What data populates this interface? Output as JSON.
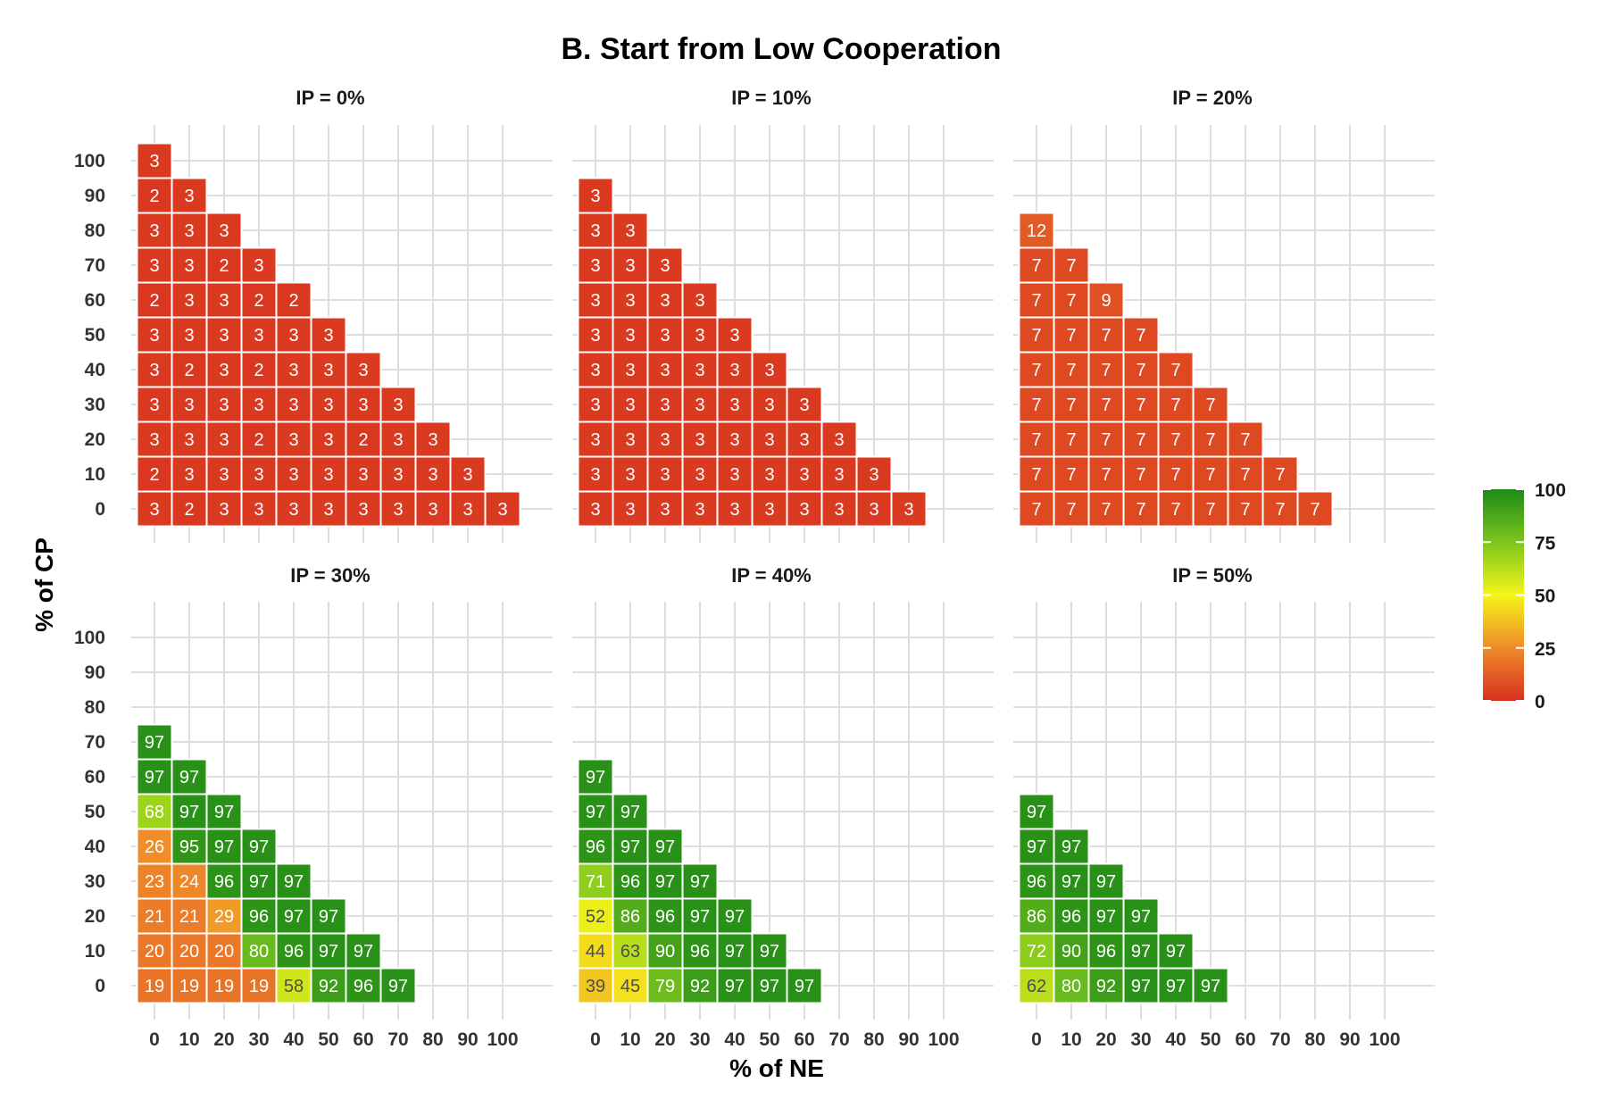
{
  "chart_data": {
    "type": "heatmap",
    "title": "B. Start from Low Cooperation",
    "xlabel": "% of NE",
    "ylabel": "% of CP",
    "x_ticks": [
      0,
      10,
      20,
      30,
      40,
      50,
      60,
      70,
      80,
      90,
      100
    ],
    "y_ticks": [
      0,
      10,
      20,
      30,
      40,
      50,
      60,
      70,
      80,
      90,
      100
    ],
    "grid": true,
    "legend": {
      "position": "right",
      "ticks": [
        0,
        25,
        50,
        75,
        100
      ],
      "colors": [
        "#d7301f",
        "#ef8a2a",
        "#f5f518",
        "#7cc61e",
        "#1e8a16"
      ]
    },
    "panels": [
      {
        "title": "IP = 0%",
        "rows": [
          {
            "cp": 0,
            "values": [
              3,
              2,
              3,
              3,
              3,
              3,
              3,
              3,
              3,
              3,
              3
            ]
          },
          {
            "cp": 10,
            "values": [
              2,
              3,
              3,
              3,
              3,
              3,
              3,
              3,
              3,
              3
            ]
          },
          {
            "cp": 20,
            "values": [
              3,
              3,
              3,
              2,
              3,
              3,
              2,
              3,
              3
            ]
          },
          {
            "cp": 30,
            "values": [
              3,
              3,
              3,
              3,
              3,
              3,
              3,
              3
            ]
          },
          {
            "cp": 40,
            "values": [
              3,
              2,
              3,
              2,
              3,
              3,
              3
            ]
          },
          {
            "cp": 50,
            "values": [
              3,
              3,
              3,
              3,
              3,
              3
            ]
          },
          {
            "cp": 60,
            "values": [
              2,
              3,
              3,
              2,
              2
            ]
          },
          {
            "cp": 70,
            "values": [
              3,
              3,
              2,
              3
            ]
          },
          {
            "cp": 80,
            "values": [
              3,
              3,
              3
            ]
          },
          {
            "cp": 90,
            "values": [
              2,
              3
            ]
          },
          {
            "cp": 100,
            "values": [
              3
            ]
          }
        ]
      },
      {
        "title": "IP = 10%",
        "rows": [
          {
            "cp": 0,
            "values": [
              3,
              3,
              3,
              3,
              3,
              3,
              3,
              3,
              3,
              3
            ]
          },
          {
            "cp": 10,
            "values": [
              3,
              3,
              3,
              3,
              3,
              3,
              3,
              3,
              3
            ]
          },
          {
            "cp": 20,
            "values": [
              3,
              3,
              3,
              3,
              3,
              3,
              3,
              3
            ]
          },
          {
            "cp": 30,
            "values": [
              3,
              3,
              3,
              3,
              3,
              3,
              3
            ]
          },
          {
            "cp": 40,
            "values": [
              3,
              3,
              3,
              3,
              3,
              3
            ]
          },
          {
            "cp": 50,
            "values": [
              3,
              3,
              3,
              3,
              3
            ]
          },
          {
            "cp": 60,
            "values": [
              3,
              3,
              3,
              3
            ]
          },
          {
            "cp": 70,
            "values": [
              3,
              3,
              3
            ]
          },
          {
            "cp": 80,
            "values": [
              3,
              3
            ]
          },
          {
            "cp": 90,
            "values": [
              3
            ]
          }
        ]
      },
      {
        "title": "IP = 20%",
        "rows": [
          {
            "cp": 0,
            "values": [
              7,
              7,
              7,
              7,
              7,
              7,
              7,
              7,
              7
            ]
          },
          {
            "cp": 10,
            "values": [
              7,
              7,
              7,
              7,
              7,
              7,
              7,
              7
            ]
          },
          {
            "cp": 20,
            "values": [
              7,
              7,
              7,
              7,
              7,
              7,
              7
            ]
          },
          {
            "cp": 30,
            "values": [
              7,
              7,
              7,
              7,
              7,
              7
            ]
          },
          {
            "cp": 40,
            "values": [
              7,
              7,
              7,
              7,
              7
            ]
          },
          {
            "cp": 50,
            "values": [
              7,
              7,
              7,
              7
            ]
          },
          {
            "cp": 60,
            "values": [
              7,
              7,
              9
            ]
          },
          {
            "cp": 70,
            "values": [
              7,
              7
            ]
          },
          {
            "cp": 80,
            "values": [
              12
            ]
          }
        ]
      },
      {
        "title": "IP = 30%",
        "rows": [
          {
            "cp": 0,
            "values": [
              19,
              19,
              19,
              19,
              58,
              92,
              96,
              97
            ]
          },
          {
            "cp": 10,
            "values": [
              20,
              20,
              20,
              80,
              96,
              97,
              97
            ]
          },
          {
            "cp": 20,
            "values": [
              21,
              21,
              29,
              96,
              97,
              97
            ]
          },
          {
            "cp": 30,
            "values": [
              23,
              24,
              96,
              97,
              97
            ]
          },
          {
            "cp": 40,
            "values": [
              26,
              95,
              97,
              97
            ]
          },
          {
            "cp": 50,
            "values": [
              68,
              97,
              97
            ]
          },
          {
            "cp": 60,
            "values": [
              97,
              97
            ]
          },
          {
            "cp": 70,
            "values": [
              97
            ]
          }
        ]
      },
      {
        "title": "IP = 40%",
        "rows": [
          {
            "cp": 0,
            "values": [
              39,
              45,
              79,
              92,
              97,
              97,
              97
            ]
          },
          {
            "cp": 10,
            "values": [
              44,
              63,
              90,
              96,
              97,
              97
            ]
          },
          {
            "cp": 20,
            "values": [
              52,
              86,
              96,
              97,
              97
            ]
          },
          {
            "cp": 30,
            "values": [
              71,
              96,
              97,
              97
            ]
          },
          {
            "cp": 40,
            "values": [
              96,
              97,
              97
            ]
          },
          {
            "cp": 50,
            "values": [
              97,
              97
            ]
          },
          {
            "cp": 60,
            "values": [
              97
            ]
          }
        ]
      },
      {
        "title": "IP = 50%",
        "rows": [
          {
            "cp": 0,
            "values": [
              62,
              80,
              92,
              97,
              97,
              97
            ]
          },
          {
            "cp": 10,
            "values": [
              72,
              90,
              96,
              97,
              97
            ]
          },
          {
            "cp": 20,
            "values": [
              86,
              96,
              97,
              97
            ]
          },
          {
            "cp": 30,
            "values": [
              96,
              97,
              97
            ]
          },
          {
            "cp": 40,
            "values": [
              97,
              97
            ]
          },
          {
            "cp": 50,
            "values": [
              97
            ]
          }
        ]
      }
    ]
  }
}
